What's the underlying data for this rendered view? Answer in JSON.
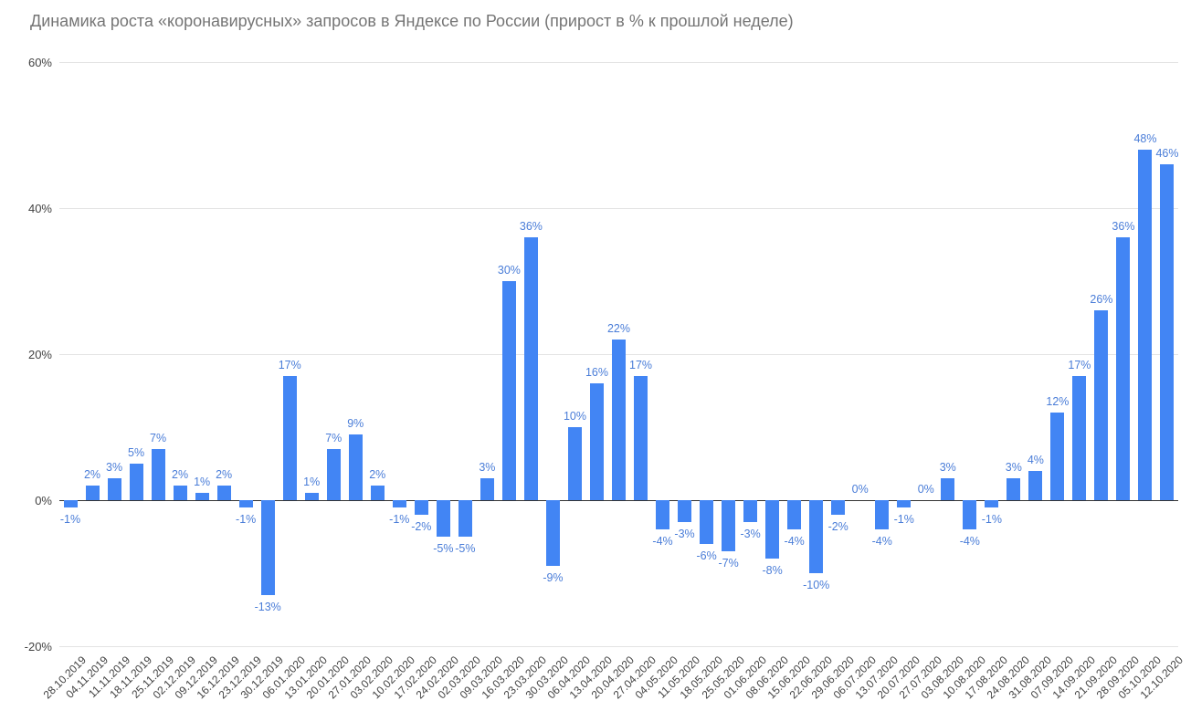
{
  "chart_data": {
    "type": "bar",
    "title": "Динамика роста «коронавирусных» запросов в Яндексе по России (прирост в % к прошлой неделе)",
    "xlabel": "",
    "ylabel": "",
    "ylim": [
      -20,
      60
    ],
    "grid": true,
    "legend": "none",
    "y_ticks": [
      {
        "value": 60,
        "label": "60%"
      },
      {
        "value": 40,
        "label": "40%"
      },
      {
        "value": 20,
        "label": "20%"
      },
      {
        "value": 0,
        "label": "0%"
      },
      {
        "value": -20,
        "label": "-20%"
      }
    ],
    "categories": [
      "28.10.2019",
      "04.11.2019",
      "11.11.2019",
      "18.11.2019",
      "25.11.2019",
      "02.12.2019",
      "09.12.2019",
      "16.12.2019",
      "23.12.2019",
      "30.12.2019",
      "06.01.2020",
      "13.01.2020",
      "20.01.2020",
      "27.01.2020",
      "03.02.2020",
      "10.02.2020",
      "17.02.2020",
      "24.02.2020",
      "02.03.2020",
      "09.03.2020",
      "16.03.2020",
      "23.03.2020",
      "30.03.2020",
      "06.04.2020",
      "13.04.2020",
      "20.04.2020",
      "27.04.2020",
      "04.05.2020",
      "11.05.2020",
      "18.05.2020",
      "25.05.2020",
      "01.06.2020",
      "08.06.2020",
      "15.06.2020",
      "22.06.2020",
      "29.06.2020",
      "06.07.2020",
      "13.07.2020",
      "20.07.2020",
      "27.07.2020",
      "03.08.2020",
      "10.08.2020",
      "17.08.2020",
      "24.08.2020",
      "31.08.2020",
      "07.09.2020",
      "14.09.2020",
      "21.09.2020",
      "28.09.2020",
      "05.10.2020",
      "12.10.2020"
    ],
    "values": [
      -1,
      2,
      3,
      5,
      7,
      2,
      1,
      2,
      -1,
      -13,
      17,
      1,
      7,
      9,
      2,
      -1,
      -2,
      -5,
      -5,
      3,
      30,
      36,
      -9,
      10,
      16,
      22,
      17,
      -4,
      -3,
      -6,
      -7,
      -3,
      -8,
      -4,
      -10,
      -2,
      0,
      -4,
      -1,
      0,
      3,
      -4,
      -1,
      3,
      4,
      12,
      17,
      26,
      36,
      48,
      46
    ],
    "labels": [
      "-1%",
      "2%",
      "3%",
      "5%",
      "7%",
      "2%",
      "1%",
      "2%",
      "-1%",
      "-13%",
      "17%",
      "1%",
      "7%",
      "9%",
      "2%",
      "-1%",
      "-2%",
      "-5%",
      "-5%",
      "3%",
      "30%",
      "36%",
      "-9%",
      "10%",
      "16%",
      "22%",
      "17%",
      "-4%",
      "-3%",
      "-6%",
      "-7%",
      "-3%",
      "-8%",
      "-4%",
      "-10%",
      "-2%",
      "0%",
      "-4%",
      "-1%",
      "0%",
      "3%",
      "-4%",
      "-1%",
      "3%",
      "4%",
      "12%",
      "17%",
      "26%",
      "36%",
      "48%",
      "46%"
    ],
    "colors": {
      "bar": "#4285f4",
      "data_label": "#4a7dd8",
      "title": "#757575",
      "axis_text": "#424242",
      "gridline": "#e3e3e3",
      "zero_axis": "#333333"
    }
  }
}
